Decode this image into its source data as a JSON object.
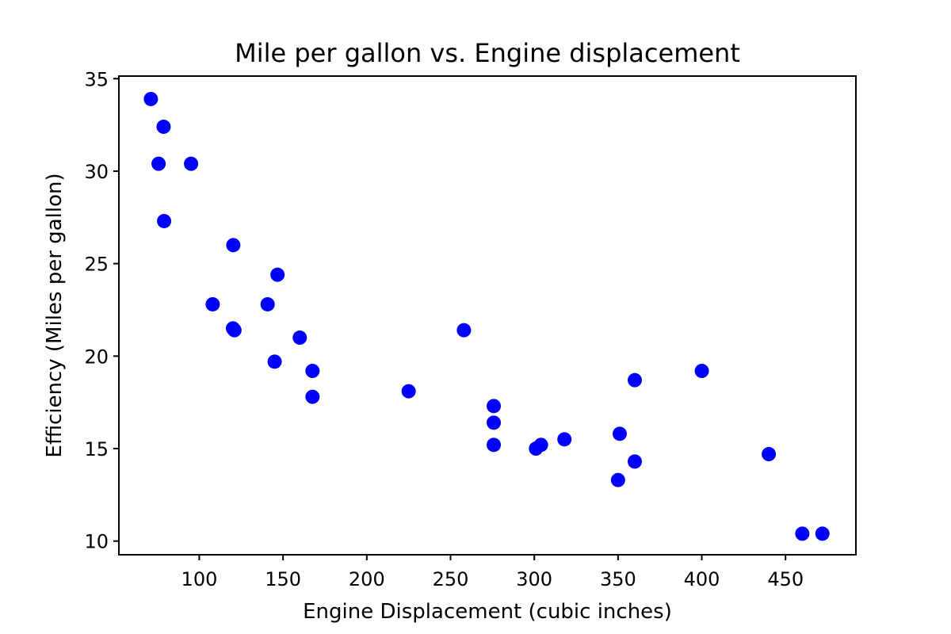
{
  "chart_data": {
    "type": "scatter",
    "title": "Mile per gallon vs. Engine displacement",
    "xlabel": "Engine Displacement (cubic inches)",
    "ylabel": "Efficiency (Miles per gallon)",
    "xlim": [
      52,
      492
    ],
    "ylim": [
      9.26,
      35.14
    ],
    "xticks": [
      100,
      150,
      200,
      250,
      300,
      350,
      400,
      450
    ],
    "yticks": [
      10,
      15,
      20,
      25,
      30,
      35
    ],
    "grid": false,
    "marker_color": "#0000ff",
    "series": [
      {
        "points": [
          [
            71.1,
            33.9
          ],
          [
            78.7,
            32.4
          ],
          [
            75.7,
            30.4
          ],
          [
            95.1,
            30.4
          ],
          [
            79.0,
            27.3
          ],
          [
            120.3,
            26.0
          ],
          [
            146.7,
            24.4
          ],
          [
            108.0,
            22.8
          ],
          [
            140.8,
            22.8
          ],
          [
            121.0,
            21.4
          ],
          [
            120.1,
            21.5
          ],
          [
            160.0,
            21.0
          ],
          [
            258.0,
            21.4
          ],
          [
            145.0,
            19.7
          ],
          [
            167.6,
            19.2
          ],
          [
            167.6,
            17.8
          ],
          [
            225.0,
            18.1
          ],
          [
            275.8,
            17.3
          ],
          [
            275.8,
            16.4
          ],
          [
            275.8,
            15.2
          ],
          [
            301.0,
            15.0
          ],
          [
            304.0,
            15.2
          ],
          [
            318.0,
            15.5
          ],
          [
            350.0,
            13.3
          ],
          [
            351.0,
            15.8
          ],
          [
            360.0,
            14.3
          ],
          [
            360.0,
            18.7
          ],
          [
            400.0,
            19.2
          ],
          [
            440.0,
            14.7
          ],
          [
            460.0,
            10.4
          ],
          [
            472.0,
            10.4
          ]
        ]
      }
    ]
  }
}
